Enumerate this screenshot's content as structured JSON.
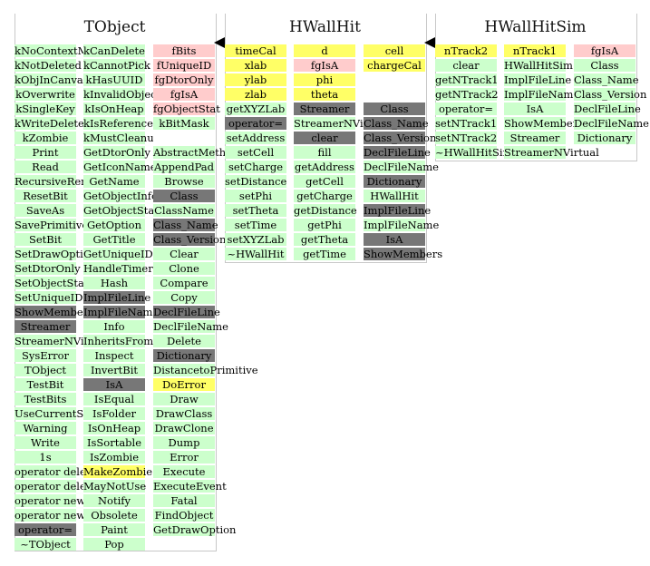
{
  "panels": {
    "tobject": {
      "title": "TObject",
      "col1": [
        {
          "t": "kNoContextMenu",
          "c": "g"
        },
        {
          "t": "kNotDeleted",
          "c": "g"
        },
        {
          "t": "kObjInCanvas",
          "c": "g"
        },
        {
          "t": "kOverwrite",
          "c": "g"
        },
        {
          "t": "kSingleKey",
          "c": "g"
        },
        {
          "t": "kWriteDelete",
          "c": "g"
        },
        {
          "t": "kZombie",
          "c": "g"
        },
        {
          "t": "Print",
          "c": "g"
        },
        {
          "t": "Read",
          "c": "g"
        },
        {
          "t": "RecursiveRemove",
          "c": "g"
        },
        {
          "t": "ResetBit",
          "c": "g"
        },
        {
          "t": "SaveAs",
          "c": "g"
        },
        {
          "t": "SavePrimitive",
          "c": "g"
        },
        {
          "t": "SetBit",
          "c": "g"
        },
        {
          "t": "SetDrawOption",
          "c": "g"
        },
        {
          "t": "SetDtorOnly",
          "c": "g"
        },
        {
          "t": "SetObjectStat",
          "c": "g"
        },
        {
          "t": "SetUniqueID",
          "c": "g"
        },
        {
          "t": "ShowMembers",
          "c": "d"
        },
        {
          "t": "Streamer",
          "c": "d"
        },
        {
          "t": "StreamerNVirtual",
          "c": "g"
        },
        {
          "t": "SysError",
          "c": "g"
        },
        {
          "t": "TObject",
          "c": "g"
        },
        {
          "t": "TestBit",
          "c": "g"
        },
        {
          "t": "TestBits",
          "c": "g"
        },
        {
          "t": "UseCurrentStyle",
          "c": "g"
        },
        {
          "t": "Warning",
          "c": "g"
        },
        {
          "t": "Write",
          "c": "g"
        },
        {
          "t": "1s",
          "c": "g"
        },
        {
          "t": "operator delete",
          "c": "g"
        },
        {
          "t": "operator delete[]",
          "c": "g"
        },
        {
          "t": "operator new",
          "c": "g"
        },
        {
          "t": "operator new[]",
          "c": "g"
        },
        {
          "t": "operator=",
          "c": "d"
        },
        {
          "t": "~TObject",
          "c": "g"
        }
      ],
      "col2": [
        {
          "t": "kCanDelete",
          "c": "g"
        },
        {
          "t": "kCannotPick",
          "c": "g"
        },
        {
          "t": "kHasUUID",
          "c": "g"
        },
        {
          "t": "kInvalidObject",
          "c": "g"
        },
        {
          "t": "kIsOnHeap",
          "c": "g"
        },
        {
          "t": "kIsReferenced",
          "c": "g"
        },
        {
          "t": "kMustCleanup",
          "c": "g"
        },
        {
          "t": "GetDtorOnly",
          "c": "g"
        },
        {
          "t": "GetIconName",
          "c": "g"
        },
        {
          "t": "GetName",
          "c": "g"
        },
        {
          "t": "GetObjectInfo",
          "c": "g"
        },
        {
          "t": "GetObjectStat",
          "c": "g"
        },
        {
          "t": "GetOption",
          "c": "g"
        },
        {
          "t": "GetTitle",
          "c": "g"
        },
        {
          "t": "GetUniqueID",
          "c": "g"
        },
        {
          "t": "HandleTimer",
          "c": "g"
        },
        {
          "t": "Hash",
          "c": "g"
        },
        {
          "t": "ImplFileLine",
          "c": "d"
        },
        {
          "t": "ImplFileName",
          "c": "d"
        },
        {
          "t": "Info",
          "c": "g"
        },
        {
          "t": "InheritsFrom",
          "c": "g"
        },
        {
          "t": "Inspect",
          "c": "g"
        },
        {
          "t": "InvertBit",
          "c": "g"
        },
        {
          "t": "IsA",
          "c": "d"
        },
        {
          "t": "IsEqual",
          "c": "g"
        },
        {
          "t": "IsFolder",
          "c": "g"
        },
        {
          "t": "IsOnHeap",
          "c": "g"
        },
        {
          "t": "IsSortable",
          "c": "g"
        },
        {
          "t": "IsZombie",
          "c": "g"
        },
        {
          "t": "MakeZombie",
          "c": "y"
        },
        {
          "t": "MayNotUse",
          "c": "g"
        },
        {
          "t": "Notify",
          "c": "g"
        },
        {
          "t": "Obsolete",
          "c": "g"
        },
        {
          "t": "Paint",
          "c": "g"
        },
        {
          "t": "Pop",
          "c": "g"
        }
      ],
      "col3": [
        {
          "t": "fBits",
          "c": "p"
        },
        {
          "t": "fUniqueID",
          "c": "p"
        },
        {
          "t": "fgDtorOnly",
          "c": "p"
        },
        {
          "t": "fgIsA",
          "c": "p"
        },
        {
          "t": "fgObjectStat",
          "c": "p"
        },
        {
          "t": "kBitMask",
          "c": "g"
        },
        {
          "t": "",
          "c": "w"
        },
        {
          "t": "AbstractMethod",
          "c": "g"
        },
        {
          "t": "AppendPad",
          "c": "g"
        },
        {
          "t": "Browse",
          "c": "g"
        },
        {
          "t": "Class",
          "c": "d"
        },
        {
          "t": "ClassName",
          "c": "g"
        },
        {
          "t": "Class_Name",
          "c": "d"
        },
        {
          "t": "Class_Version",
          "c": "d"
        },
        {
          "t": "Clear",
          "c": "g"
        },
        {
          "t": "Clone",
          "c": "g"
        },
        {
          "t": "Compare",
          "c": "g"
        },
        {
          "t": "Copy",
          "c": "g"
        },
        {
          "t": "DeclFileLine",
          "c": "d"
        },
        {
          "t": "DeclFileName",
          "c": "g"
        },
        {
          "t": "Delete",
          "c": "g"
        },
        {
          "t": "Dictionary",
          "c": "d"
        },
        {
          "t": "DistancetoPrimitive",
          "c": "g"
        },
        {
          "t": "DoError",
          "c": "y"
        },
        {
          "t": "Draw",
          "c": "g"
        },
        {
          "t": "DrawClass",
          "c": "g"
        },
        {
          "t": "DrawClone",
          "c": "g"
        },
        {
          "t": "Dump",
          "c": "g"
        },
        {
          "t": "Error",
          "c": "g"
        },
        {
          "t": "Execute",
          "c": "g"
        },
        {
          "t": "ExecuteEvent",
          "c": "g"
        },
        {
          "t": "Fatal",
          "c": "g"
        },
        {
          "t": "FindObject",
          "c": "g"
        },
        {
          "t": "GetDrawOption",
          "c": "g"
        }
      ]
    },
    "hwallhit": {
      "title": "HWallHit",
      "col1": [
        {
          "t": "timeCal",
          "c": "y"
        },
        {
          "t": "xlab",
          "c": "y"
        },
        {
          "t": "ylab",
          "c": "y"
        },
        {
          "t": "zlab",
          "c": "y"
        },
        {
          "t": "getXYZLab",
          "c": "g"
        },
        {
          "t": "operator=",
          "c": "d"
        },
        {
          "t": "setAddress",
          "c": "g"
        },
        {
          "t": "setCell",
          "c": "g"
        },
        {
          "t": "setCharge",
          "c": "g"
        },
        {
          "t": "setDistance",
          "c": "g"
        },
        {
          "t": "setPhi",
          "c": "g"
        },
        {
          "t": "setTheta",
          "c": "g"
        },
        {
          "t": "setTime",
          "c": "g"
        },
        {
          "t": "setXYZLab",
          "c": "g"
        },
        {
          "t": "~HWallHit",
          "c": "g"
        }
      ],
      "col2": [
        {
          "t": "d",
          "c": "y"
        },
        {
          "t": "fgIsA",
          "c": "p"
        },
        {
          "t": "phi",
          "c": "y"
        },
        {
          "t": "theta",
          "c": "y"
        },
        {
          "t": "Streamer",
          "c": "d"
        },
        {
          "t": "StreamerNVirtual",
          "c": "g"
        },
        {
          "t": "clear",
          "c": "d"
        },
        {
          "t": "fill",
          "c": "g"
        },
        {
          "t": "getAddress",
          "c": "g"
        },
        {
          "t": "getCell",
          "c": "g"
        },
        {
          "t": "getCharge",
          "c": "g"
        },
        {
          "t": "getDistance",
          "c": "g"
        },
        {
          "t": "getPhi",
          "c": "g"
        },
        {
          "t": "getTheta",
          "c": "g"
        },
        {
          "t": "getTime",
          "c": "g"
        }
      ],
      "col3": [
        {
          "t": "cell",
          "c": "y"
        },
        {
          "t": "chargeCal",
          "c": "y"
        },
        {
          "t": "",
          "c": "w"
        },
        {
          "t": "",
          "c": "w"
        },
        {
          "t": "Class",
          "c": "d"
        },
        {
          "t": "Class_Name",
          "c": "d"
        },
        {
          "t": "Class_Version",
          "c": "d"
        },
        {
          "t": "DeclFileLine",
          "c": "d"
        },
        {
          "t": "DeclFileName",
          "c": "g"
        },
        {
          "t": "Dictionary",
          "c": "d"
        },
        {
          "t": "HWallHit",
          "c": "g"
        },
        {
          "t": "ImplFileLine",
          "c": "d"
        },
        {
          "t": "ImplFileName",
          "c": "g"
        },
        {
          "t": "IsA",
          "c": "d"
        },
        {
          "t": "ShowMembers",
          "c": "d"
        }
      ]
    },
    "hwallhitsim": {
      "title": "HWallHitSim",
      "col1": [
        {
          "t": "nTrack2",
          "c": "y"
        },
        {
          "t": "clear",
          "c": "g"
        },
        {
          "t": "getNTrack1",
          "c": "g"
        },
        {
          "t": "getNTrack2",
          "c": "g"
        },
        {
          "t": "operator=",
          "c": "g"
        },
        {
          "t": "setNTrack1",
          "c": "g"
        },
        {
          "t": "setNTrack2",
          "c": "g"
        },
        {
          "t": "~HWallHitSim",
          "c": "g"
        }
      ],
      "col2": [
        {
          "t": "nTrack1",
          "c": "y"
        },
        {
          "t": "HWallHitSim",
          "c": "g"
        },
        {
          "t": "ImplFileLine",
          "c": "g"
        },
        {
          "t": "ImplFileName",
          "c": "g"
        },
        {
          "t": "IsA",
          "c": "g"
        },
        {
          "t": "ShowMembers",
          "c": "g"
        },
        {
          "t": "Streamer",
          "c": "g"
        },
        {
          "t": "StreamerNVirtual",
          "c": "g"
        }
      ],
      "col3": [
        {
          "t": "fgIsA",
          "c": "p"
        },
        {
          "t": "Class",
          "c": "g"
        },
        {
          "t": "Class_Name",
          "c": "g"
        },
        {
          "t": "Class_Version",
          "c": "g"
        },
        {
          "t": "DeclFileLine",
          "c": "g"
        },
        {
          "t": "DeclFileName",
          "c": "g"
        },
        {
          "t": "Dictionary",
          "c": "g"
        }
      ]
    }
  },
  "colors": {
    "method": "#ccffcc",
    "protected": "#ffff66",
    "static_member": "#ffcccc",
    "inherited_private": "#777777"
  }
}
